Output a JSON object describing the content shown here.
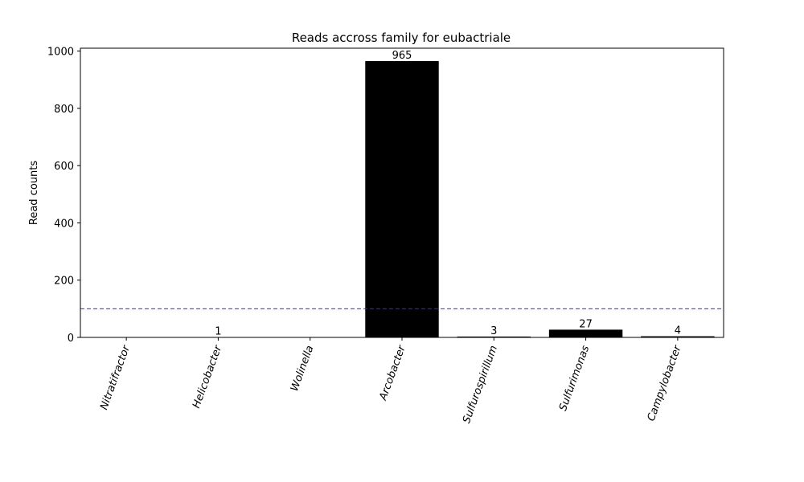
{
  "chart_data": {
    "type": "bar",
    "title": "Reads accross family for eubactriale",
    "xlabel": "",
    "ylabel": "Read counts",
    "categories": [
      "Nitratifractor",
      "Helicobacter",
      "Wolinella",
      "Arcobacter",
      "Sulfurospirillum",
      "Sulfurimonas",
      "Campylobacter"
    ],
    "values": [
      0,
      1,
      0,
      965,
      3,
      27,
      4
    ],
    "data_labels": [
      "",
      "1",
      "",
      "965",
      "3",
      "27",
      "4"
    ],
    "ylim": [
      0,
      1010
    ],
    "yticks": [
      0,
      200,
      400,
      600,
      800,
      1000
    ],
    "reference_line": {
      "y": 100,
      "style": "dashed",
      "color": "#3f3f6b"
    },
    "bar_color": "#000000",
    "grid": false,
    "legend": "none"
  }
}
